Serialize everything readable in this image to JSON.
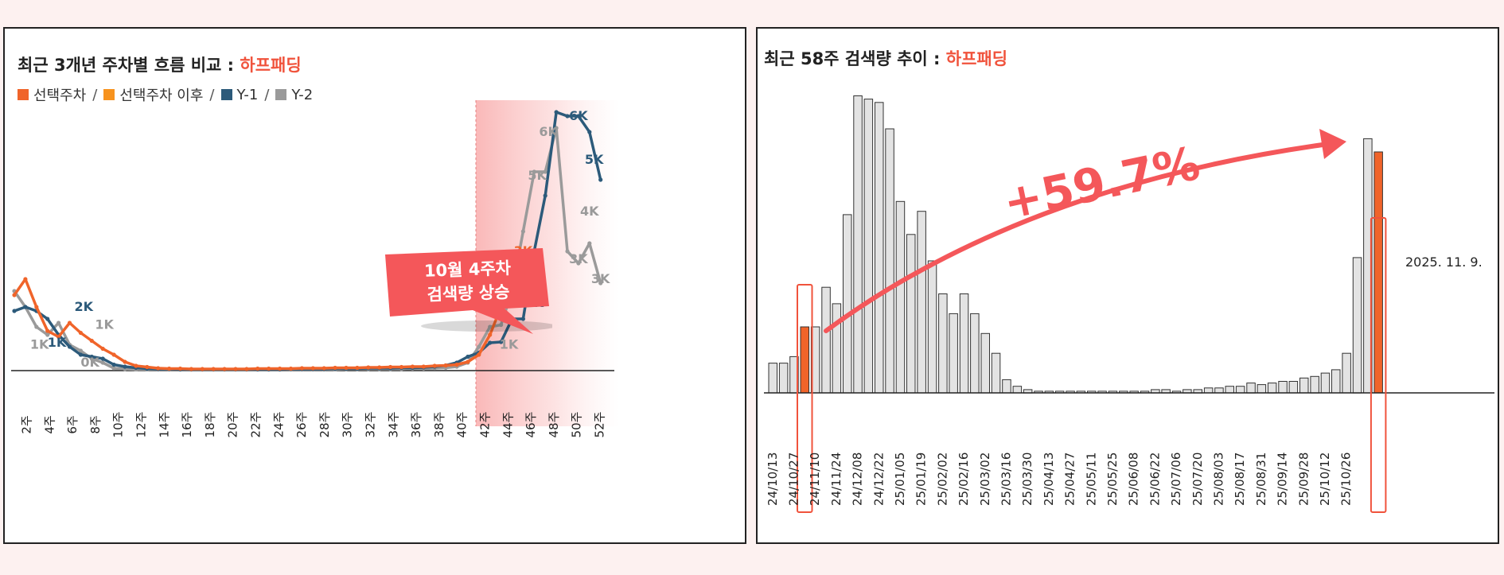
{
  "left_chart": {
    "title": "최근 3개년 주차별 흐름 비교 : ",
    "brand": "하프패딩",
    "legend": [
      {
        "label": "선택주차",
        "color": "#f0642a"
      },
      {
        "label": "선택주차 이후",
        "color": "#f7931e"
      },
      {
        "label": "Y-1",
        "color": "#2c5a7a"
      },
      {
        "label": "Y-2",
        "color": "#9a9a9a"
      }
    ],
    "callout": {
      "line1": "10월 4주차",
      "line2": "검색량 상승"
    }
  },
  "right_chart": {
    "title": "최근 58주 검색량 추이 : ",
    "brand": "하프패딩",
    "growth_label": "+59.7%",
    "date_label": "2025. 11. 9."
  },
  "chart_data": [
    {
      "type": "line",
      "x_ticks": [
        "2주",
        "4주",
        "6주",
        "8주",
        "10주",
        "12주",
        "14주",
        "16주",
        "18주",
        "20주",
        "22주",
        "24주",
        "26주",
        "28주",
        "30주",
        "32주",
        "34주",
        "36주",
        "38주",
        "40주",
        "42주",
        "44주",
        "46주",
        "48주",
        "50주",
        "52주"
      ],
      "series": [
        {
          "name": "선택주차",
          "color": "#f0642a",
          "values": [
            1.9,
            2.3,
            1.6,
            1.0,
            0.85,
            1.2,
            0.95,
            0.75,
            0.55,
            0.4,
            0.22,
            0.12,
            0.09,
            0.06,
            0.05,
            0.05,
            0.04,
            0.04,
            0.04,
            0.04,
            0.04,
            0.04,
            0.05,
            0.05,
            0.05,
            0.05,
            0.06,
            0.06,
            0.06,
            0.07,
            0.07,
            0.07,
            0.08,
            0.08,
            0.09,
            0.09,
            0.1,
            0.1,
            0.12,
            0.13,
            0.15,
            0.22,
            0.4,
            0.9,
            1.6,
            2.4,
            3.0,
            2.8
          ]
        },
        {
          "name": "Y-1",
          "color": "#2c5a7a",
          "values": [
            1.5,
            1.6,
            1.5,
            1.3,
            0.9,
            0.6,
            0.4,
            0.35,
            0.3,
            0.15,
            0.1,
            0.07,
            0.05,
            0.04,
            0.04,
            0.03,
            0.03,
            0.03,
            0.03,
            0.03,
            0.03,
            0.03,
            0.03,
            0.03,
            0.03,
            0.04,
            0.04,
            0.04,
            0.04,
            0.05,
            0.05,
            0.05,
            0.06,
            0.06,
            0.06,
            0.07,
            0.07,
            0.08,
            0.1,
            0.13,
            0.2,
            0.35,
            0.45,
            0.7,
            0.72,
            1.3,
            1.3,
            3.0,
            4.4,
            6.5,
            6.4,
            6.4,
            6.0,
            4.8
          ]
        },
        {
          "name": "Y-2",
          "color": "#9a9a9a",
          "values": [
            2.0,
            1.6,
            1.1,
            0.9,
            1.2,
            0.65,
            0.5,
            0.3,
            0.2,
            0.06,
            0.04,
            0.03,
            0.03,
            0.03,
            0.03,
            0.03,
            0.03,
            0.03,
            0.03,
            0.03,
            0.03,
            0.03,
            0.03,
            0.03,
            0.03,
            0.03,
            0.03,
            0.03,
            0.03,
            0.03,
            0.04,
            0.04,
            0.04,
            0.04,
            0.04,
            0.04,
            0.05,
            0.05,
            0.06,
            0.07,
            0.1,
            0.2,
            0.6,
            1.1,
            1.15,
            2.0,
            3.5,
            5.0,
            5.0,
            6.1,
            3.0,
            2.7,
            3.2,
            2.2
          ]
        }
      ],
      "data_labels": [
        {
          "text": "2K",
          "color": "#2c5a7a"
        },
        {
          "text": "1K",
          "color": "#9a9a9a"
        },
        {
          "text": "1K",
          "color": "#2c5a7a"
        },
        {
          "text": "1K",
          "color": "#9a9a9a"
        },
        {
          "text": "0K",
          "color": "#9a9a9a"
        },
        {
          "text": "2K",
          "color": "#f0642a"
        },
        {
          "text": "3K",
          "color": "#f0642a"
        },
        {
          "text": "1K",
          "color": "#9a9a9a"
        },
        {
          "text": "2K",
          "color": "#2c5a7a"
        },
        {
          "text": "5K",
          "color": "#9a9a9a"
        },
        {
          "text": "6K",
          "color": "#9a9a9a"
        },
        {
          "text": "6K",
          "color": "#2c5a7a"
        },
        {
          "text": "5K",
          "color": "#2c5a7a"
        },
        {
          "text": "4K",
          "color": "#9a9a9a"
        },
        {
          "text": "3K",
          "color": "#9a9a9a"
        },
        {
          "text": "3K",
          "color": "#9a9a9a"
        }
      ]
    },
    {
      "type": "bar",
      "x_ticks": [
        "24/10/13",
        "24/10/27",
        "24/11/10",
        "24/11/24",
        "24/12/08",
        "24/12/22",
        "25/01/05",
        "25/01/19",
        "25/02/02",
        "25/02/16",
        "25/03/02",
        "25/03/16",
        "25/03/30",
        "25/04/13",
        "25/04/27",
        "25/05/11",
        "25/05/25",
        "25/06/08",
        "25/06/22",
        "25/07/06",
        "25/07/20",
        "25/08/03",
        "25/08/17",
        "25/08/31",
        "25/09/14",
        "25/09/28",
        "25/10/12",
        "25/10/26"
      ],
      "values": [
        9,
        9,
        11,
        20,
        20,
        32,
        27,
        54,
        90,
        89,
        88,
        80,
        58,
        48,
        55,
        40,
        30,
        24,
        30,
        24,
        18,
        12,
        4,
        2,
        1,
        0.5,
        0.5,
        0.5,
        0.5,
        0.5,
        0.5,
        0.5,
        0.5,
        0.5,
        0.5,
        0.5,
        1,
        1,
        0.5,
        1,
        1,
        1.5,
        1.5,
        2,
        2,
        3,
        2.5,
        3,
        3.5,
        3.5,
        4.5,
        5,
        6,
        7,
        12,
        41,
        77,
        73
      ],
      "highlight": [
        {
          "index": 3,
          "color": "#f0642a"
        },
        {
          "index": 57,
          "color": "#f0642a"
        }
      ]
    }
  ]
}
